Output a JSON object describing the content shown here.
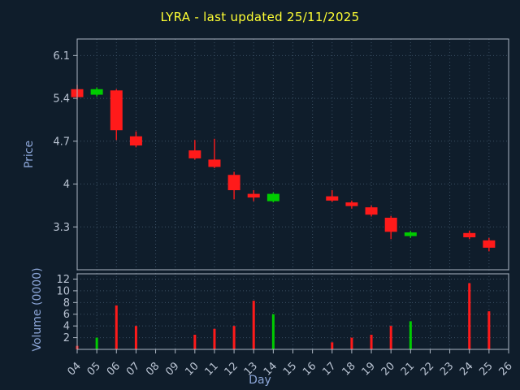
{
  "chart_data": {
    "type": "candlestick",
    "title": "LYRA - last updated 25/11/2025",
    "xlabel": "Day",
    "price_ylabel": "Price",
    "volume_ylabel": "Volume (0000)",
    "x_ticks": [
      "04",
      "05",
      "06",
      "07",
      "08",
      "09",
      "10",
      "11",
      "12",
      "13",
      "14",
      "15",
      "16",
      "17",
      "18",
      "19",
      "20",
      "21",
      "22",
      "23",
      "24",
      "25",
      "26"
    ],
    "price_ticks": [
      "6.1",
      "5.4",
      "4.7",
      "4",
      "3.3"
    ],
    "volume_ticks": [
      "12",
      "10",
      "8",
      "6",
      "4",
      "2"
    ],
    "price_range": [
      2.6,
      6.37
    ],
    "volume_range": [
      0,
      12.9
    ],
    "day_range": [
      4,
      26
    ],
    "grid": true,
    "legend": "none",
    "candles": [
      {
        "day": 4,
        "open": 5.55,
        "high": 5.62,
        "low": 5.38,
        "close": 5.42,
        "volume": 0.6
      },
      {
        "day": 5,
        "open": 5.46,
        "high": 5.58,
        "low": 5.43,
        "close": 5.55,
        "volume": 2.0
      },
      {
        "day": 6,
        "open": 5.53,
        "high": 5.55,
        "low": 4.72,
        "close": 4.88,
        "volume": 7.5
      },
      {
        "day": 7,
        "open": 4.78,
        "high": 4.86,
        "low": 4.6,
        "close": 4.63,
        "volume": 4.0
      },
      {
        "day": 10,
        "open": 4.55,
        "high": 4.72,
        "low": 4.4,
        "close": 4.42,
        "volume": 2.5
      },
      {
        "day": 11,
        "open": 4.4,
        "high": 4.74,
        "low": 4.26,
        "close": 4.28,
        "volume": 3.5
      },
      {
        "day": 12,
        "open": 4.15,
        "high": 4.2,
        "low": 3.75,
        "close": 3.9,
        "volume": 4.0
      },
      {
        "day": 13,
        "open": 3.84,
        "high": 3.9,
        "low": 3.72,
        "close": 3.78,
        "volume": 8.3
      },
      {
        "day": 14,
        "open": 3.72,
        "high": 3.86,
        "low": 3.7,
        "close": 3.84,
        "volume": 6.0
      },
      {
        "day": 17,
        "open": 3.8,
        "high": 3.9,
        "low": 3.71,
        "close": 3.73,
        "volume": 1.2
      },
      {
        "day": 18,
        "open": 3.7,
        "high": 3.73,
        "low": 3.6,
        "close": 3.64,
        "volume": 2.0
      },
      {
        "day": 19,
        "open": 3.62,
        "high": 3.65,
        "low": 3.47,
        "close": 3.5,
        "volume": 2.5
      },
      {
        "day": 20,
        "open": 3.45,
        "high": 3.48,
        "low": 3.1,
        "close": 3.22,
        "volume": 4.0
      },
      {
        "day": 21,
        "open": 3.15,
        "high": 3.23,
        "low": 3.12,
        "close": 3.21,
        "volume": 4.8
      },
      {
        "day": 24,
        "open": 3.2,
        "high": 3.24,
        "low": 3.1,
        "close": 3.13,
        "volume": 11.3
      },
      {
        "day": 25,
        "open": 3.08,
        "high": 3.12,
        "low": 2.9,
        "close": 2.96,
        "volume": 6.5
      }
    ],
    "colors": {
      "up": "#00cc00",
      "down": "#ff1a1a",
      "background": "#0f1d2b",
      "grid": "#3a4f63",
      "axis": "#aeb8c4",
      "tick_label": "#b9c3d2",
      "axis_label": "#8ca6d8",
      "title": "#ffff33"
    }
  }
}
